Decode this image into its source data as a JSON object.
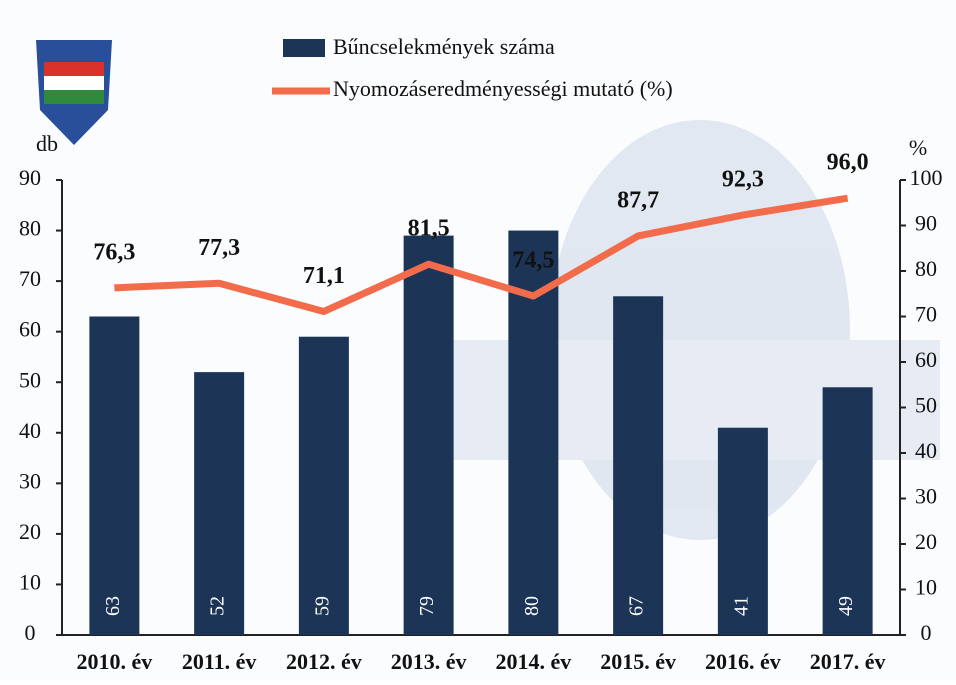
{
  "chart_data": {
    "type": "combo",
    "categories": [
      "2010. év",
      "2011. év",
      "2012. év",
      "2013. év",
      "2014. év",
      "2015. év",
      "2016. év",
      "2017. év"
    ],
    "series": [
      {
        "name": "Bűncselekmények száma",
        "type": "bar",
        "color": "#1c3557",
        "values": [
          63,
          52,
          59,
          79,
          80,
          67,
          41,
          49
        ]
      },
      {
        "name": "Nyomozáseredményességi mutató (%)",
        "type": "line",
        "color": "#f26b4a",
        "axis": "y2",
        "values": [
          76.3,
          77.3,
          71.1,
          81.5,
          74.5,
          87.7,
          92.3,
          96.0
        ],
        "value_labels": [
          "76,3",
          "77,3",
          "71,1",
          "81,5",
          "74,5",
          "87,7",
          "92,3",
          "96,0"
        ]
      }
    ],
    "ylabel": "db",
    "y2label": "%",
    "ylim": [
      0,
      90
    ],
    "yticks": [
      0,
      10,
      20,
      30,
      40,
      50,
      60,
      70,
      80,
      90
    ],
    "y2lim": [
      0,
      100
    ],
    "y2ticks": [
      0,
      10,
      20,
      30,
      40,
      50,
      60,
      70,
      80,
      90,
      100
    ]
  }
}
